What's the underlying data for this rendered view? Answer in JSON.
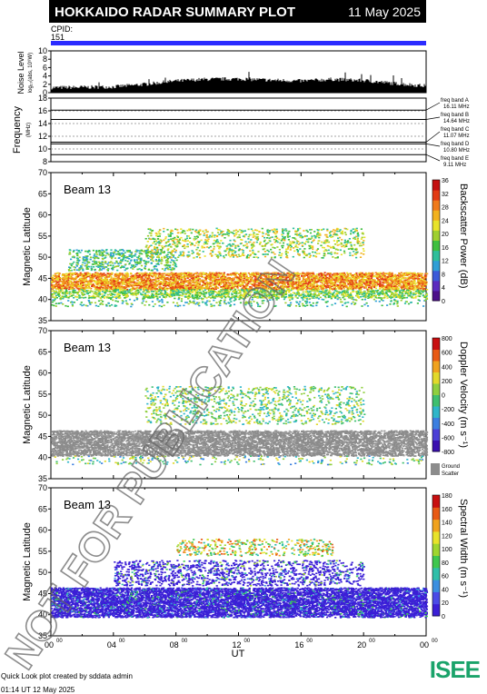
{
  "header": {
    "title": "HOKKAIDO RADAR SUMMARY PLOT",
    "date": "11 May 2025",
    "cpid_label": "CPID:",
    "cpid_value": "151"
  },
  "noise": {
    "ylabel": "Noise Level",
    "ylabel_small": "log₁₀(abs, 10⁹W)",
    "ticks": [
      "0",
      "2",
      "4",
      "6",
      "8",
      "10"
    ],
    "ylim": [
      0,
      10
    ]
  },
  "frequency": {
    "ylabel": "Frequency",
    "unit": "(MHz)",
    "ticks": [
      "8",
      "10",
      "12",
      "14",
      "16",
      "18"
    ],
    "ylim": [
      8,
      18
    ],
    "bands": [
      {
        "name": "freq band A",
        "value": "16.11 MHz",
        "mhz": 16.11
      },
      {
        "name": "freq band B",
        "value": "14.64 MHz",
        "mhz": 14.64
      },
      {
        "name": "freq band C",
        "value": "11.07 MHz",
        "mhz": 11.07
      },
      {
        "name": "freq band D",
        "value": "10.80 MHz",
        "mhz": 10.8
      },
      {
        "name": "freq band E",
        "value": "9.11 MHz",
        "mhz": 9.11
      }
    ]
  },
  "panels": [
    {
      "beam": "Beam 13",
      "ylabel": "Magnetic Latitude",
      "colorbar_label": "Backscatter Power (dB)",
      "colorbar_ticks": [
        "0",
        "4",
        "8",
        "12",
        "16",
        "20",
        "24",
        "28",
        "32",
        "36"
      ]
    },
    {
      "beam": "Beam 13",
      "ylabel": "Magnetic Latitude",
      "colorbar_label": "Doppler Velocity (m s⁻¹)",
      "colorbar_ticks": [
        "800",
        "600",
        "400",
        "200",
        "0",
        "-200",
        "-400",
        "-600",
        "-800"
      ],
      "ground_label_1": "Ground",
      "ground_label_2": "Scatter"
    },
    {
      "beam": "Beam 13",
      "ylabel": "Magnetic Latitude",
      "colorbar_label": "Spectral Width (m s⁻¹)",
      "colorbar_ticks": [
        "0",
        "20",
        "40",
        "60",
        "80",
        "100",
        "120",
        "140",
        "160",
        "180"
      ]
    }
  ],
  "lat_ticks": [
    "35",
    "40",
    "45",
    "50",
    "55",
    "60",
    "65",
    "70"
  ],
  "x_axis": {
    "label": "UT",
    "ticks": [
      "00",
      "04",
      "08",
      "12",
      "16",
      "20",
      "00"
    ],
    "tick_sup": "00"
  },
  "watermark": "NOT FOR PUBLICATION",
  "footer": {
    "line1": "Quick Look plot created by sddata admin",
    "line2": "01:14 UT 12 May 2025",
    "logo": "ISEE"
  },
  "colors": {
    "header_bg": "#000000",
    "cpid_bar": "#2b2bff",
    "ground_scatter": "#8c8c8c"
  },
  "chart_data": [
    {
      "type": "area",
      "title": "Noise Level",
      "x_unit": "UT hours",
      "x": [
        0,
        2,
        4,
        6,
        8,
        10,
        12,
        14,
        16,
        18,
        20,
        22,
        24
      ],
      "values": [
        1.2,
        1.3,
        1.4,
        2.0,
        2.8,
        3.2,
        3.3,
        3.0,
        2.8,
        3.2,
        2.9,
        2.2,
        1.6
      ],
      "ylim": [
        0,
        10
      ]
    },
    {
      "type": "line",
      "title": "Frequency",
      "series": [
        {
          "name": "freq band A",
          "value": 16.11
        },
        {
          "name": "freq band B",
          "value": 14.64
        },
        {
          "name": "freq band C",
          "value": 11.07
        },
        {
          "name": "freq band D",
          "value": 10.8
        },
        {
          "name": "freq band E",
          "value": 9.11
        }
      ],
      "ylim": [
        8,
        18
      ]
    },
    {
      "type": "heatmap",
      "title": "Backscatter Power (dB)",
      "xlim": [
        0,
        24
      ],
      "ylim": [
        35,
        70
      ],
      "zlim": [
        0,
        36
      ],
      "regions": [
        {
          "t0": 0,
          "t1": 24,
          "lat0": 42.5,
          "lat1": 46.5,
          "z": 28
        },
        {
          "t0": 0,
          "t1": 24,
          "lat0": 40.5,
          "lat1": 42.5,
          "z": 12
        },
        {
          "t0": 1,
          "t1": 8,
          "lat0": 47,
          "lat1": 52,
          "z": 16
        },
        {
          "t0": 6,
          "t1": 20,
          "lat0": 50,
          "lat1": 57,
          "z": 20
        }
      ]
    },
    {
      "type": "heatmap",
      "title": "Doppler Velocity (m s⁻¹)",
      "xlim": [
        0,
        24
      ],
      "ylim": [
        35,
        70
      ],
      "zlim": [
        -800,
        800
      ],
      "regions": [
        {
          "t0": 0,
          "t1": 24,
          "lat0": 40.5,
          "lat1": 46.5,
          "z": "ground scatter"
        },
        {
          "t0": 6,
          "t1": 20,
          "lat0": 48,
          "lat1": 57,
          "z": 0
        }
      ]
    },
    {
      "type": "heatmap",
      "title": "Spectral Width (m s⁻¹)",
      "xlim": [
        0,
        24
      ],
      "ylim": [
        35,
        70
      ],
      "zlim": [
        0,
        180
      ],
      "regions": [
        {
          "t0": 0,
          "t1": 24,
          "lat0": 39.5,
          "lat1": 46.5,
          "z": 10
        },
        {
          "t0": 4,
          "t1": 20,
          "lat0": 47,
          "lat1": 53,
          "z": 15
        },
        {
          "t0": 8,
          "t1": 18,
          "lat0": 54,
          "lat1": 58,
          "z": 100
        }
      ]
    }
  ]
}
